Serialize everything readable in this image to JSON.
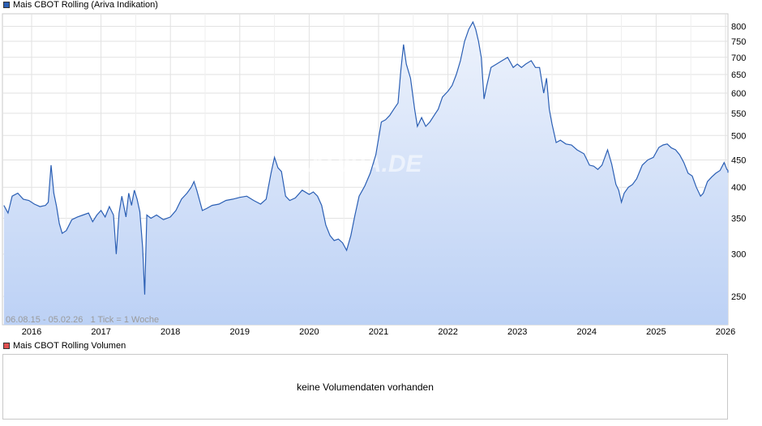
{
  "legend": {
    "price_label": "Mais CBOT Rolling (Ariva Indikation)",
    "price_color": "#2b5fb4",
    "volume_label": "Mais CBOT Rolling Volumen",
    "volume_color": "#e05050"
  },
  "watermark": "ARIVA.DE",
  "info_text": "06.08.15 - 05.02.26   1 Tick = 1 Woche",
  "volume_panel": {
    "message": "keine Volumendaten vorhanden"
  },
  "chart_data": {
    "type": "area",
    "title": "Mais CBOT Rolling (Ariva Indikation)",
    "series_name": "Mais CBOT Rolling",
    "y_scale": "log",
    "ylim": [
      228,
      825
    ],
    "xlim": [
      2015.6,
      2026.13
    ],
    "grid": true,
    "line_color": "#2b5fb4",
    "fill_top_color": "#eef3fc",
    "fill_bottom_color": "#bcd1f5",
    "y_ticks": [
      250,
      300,
      350,
      400,
      450,
      500,
      550,
      600,
      650,
      700,
      750,
      800
    ],
    "x_ticks": [
      {
        "label": "2016",
        "x": 2016.0
      },
      {
        "label": "2017",
        "x": 2017.0
      },
      {
        "label": "2018",
        "x": 2018.0
      },
      {
        "label": "2019",
        "x": 2019.0
      },
      {
        "label": "2020",
        "x": 2020.0
      },
      {
        "label": "2021",
        "x": 2021.0
      },
      {
        "label": "2022",
        "x": 2022.0
      },
      {
        "label": "2023",
        "x": 2023.0
      },
      {
        "label": "2024",
        "x": 2024.0
      },
      {
        "label": "2025",
        "x": 2025.0
      },
      {
        "label": "2026",
        "x": 2026.0
      }
    ],
    "points": [
      [
        2015.6,
        370
      ],
      [
        2015.66,
        358
      ],
      [
        2015.72,
        385
      ],
      [
        2015.8,
        390
      ],
      [
        2015.88,
        380
      ],
      [
        2015.96,
        378
      ],
      [
        2016.04,
        372
      ],
      [
        2016.12,
        368
      ],
      [
        2016.2,
        370
      ],
      [
        2016.24,
        375
      ],
      [
        2016.28,
        440
      ],
      [
        2016.32,
        390
      ],
      [
        2016.36,
        368
      ],
      [
        2016.4,
        342
      ],
      [
        2016.44,
        328
      ],
      [
        2016.5,
        332
      ],
      [
        2016.58,
        348
      ],
      [
        2016.66,
        352
      ],
      [
        2016.74,
        355
      ],
      [
        2016.82,
        358
      ],
      [
        2016.88,
        345
      ],
      [
        2016.94,
        355
      ],
      [
        2017.0,
        362
      ],
      [
        2017.06,
        352
      ],
      [
        2017.12,
        368
      ],
      [
        2017.18,
        355
      ],
      [
        2017.22,
        300
      ],
      [
        2017.26,
        358
      ],
      [
        2017.3,
        385
      ],
      [
        2017.36,
        352
      ],
      [
        2017.4,
        390
      ],
      [
        2017.44,
        370
      ],
      [
        2017.48,
        395
      ],
      [
        2017.52,
        380
      ],
      [
        2017.56,
        360
      ],
      [
        2017.6,
        308
      ],
      [
        2017.63,
        252
      ],
      [
        2017.66,
        355
      ],
      [
        2017.72,
        350
      ],
      [
        2017.8,
        355
      ],
      [
        2017.9,
        348
      ],
      [
        2018.0,
        352
      ],
      [
        2018.08,
        362
      ],
      [
        2018.16,
        380
      ],
      [
        2018.24,
        390
      ],
      [
        2018.3,
        400
      ],
      [
        2018.34,
        410
      ],
      [
        2018.38,
        395
      ],
      [
        2018.42,
        378
      ],
      [
        2018.46,
        362
      ],
      [
        2018.52,
        365
      ],
      [
        2018.6,
        370
      ],
      [
        2018.7,
        372
      ],
      [
        2018.8,
        378
      ],
      [
        2018.9,
        380
      ],
      [
        2019.0,
        383
      ],
      [
        2019.1,
        385
      ],
      [
        2019.2,
        378
      ],
      [
        2019.3,
        372
      ],
      [
        2019.38,
        380
      ],
      [
        2019.45,
        425
      ],
      [
        2019.5,
        455
      ],
      [
        2019.55,
        435
      ],
      [
        2019.6,
        428
      ],
      [
        2019.66,
        385
      ],
      [
        2019.72,
        378
      ],
      [
        2019.8,
        382
      ],
      [
        2019.9,
        395
      ],
      [
        2020.0,
        388
      ],
      [
        2020.06,
        392
      ],
      [
        2020.12,
        385
      ],
      [
        2020.18,
        370
      ],
      [
        2020.24,
        340
      ],
      [
        2020.3,
        325
      ],
      [
        2020.36,
        318
      ],
      [
        2020.42,
        320
      ],
      [
        2020.48,
        315
      ],
      [
        2020.54,
        305
      ],
      [
        2020.6,
        325
      ],
      [
        2020.66,
        355
      ],
      [
        2020.72,
        385
      ],
      [
        2020.8,
        402
      ],
      [
        2020.88,
        425
      ],
      [
        2020.96,
        460
      ],
      [
        2021.04,
        530
      ],
      [
        2021.1,
        535
      ],
      [
        2021.16,
        545
      ],
      [
        2021.22,
        560
      ],
      [
        2021.28,
        575
      ],
      [
        2021.32,
        660
      ],
      [
        2021.36,
        740
      ],
      [
        2021.4,
        680
      ],
      [
        2021.46,
        640
      ],
      [
        2021.52,
        560
      ],
      [
        2021.56,
        520
      ],
      [
        2021.62,
        540
      ],
      [
        2021.68,
        520
      ],
      [
        2021.74,
        530
      ],
      [
        2021.8,
        545
      ],
      [
        2021.86,
        560
      ],
      [
        2021.92,
        590
      ],
      [
        2022.0,
        605
      ],
      [
        2022.06,
        620
      ],
      [
        2022.12,
        650
      ],
      [
        2022.18,
        690
      ],
      [
        2022.24,
        750
      ],
      [
        2022.3,
        790
      ],
      [
        2022.36,
        815
      ],
      [
        2022.4,
        790
      ],
      [
        2022.44,
        750
      ],
      [
        2022.48,
        700
      ],
      [
        2022.52,
        585
      ],
      [
        2022.56,
        620
      ],
      [
        2022.62,
        670
      ],
      [
        2022.7,
        680
      ],
      [
        2022.78,
        690
      ],
      [
        2022.86,
        700
      ],
      [
        2022.94,
        670
      ],
      [
        2023.0,
        680
      ],
      [
        2023.06,
        670
      ],
      [
        2023.12,
        680
      ],
      [
        2023.2,
        690
      ],
      [
        2023.26,
        670
      ],
      [
        2023.32,
        670
      ],
      [
        2023.38,
        600
      ],
      [
        2023.42,
        640
      ],
      [
        2023.46,
        560
      ],
      [
        2023.5,
        525
      ],
      [
        2023.56,
        485
      ],
      [
        2023.62,
        490
      ],
      [
        2023.7,
        482
      ],
      [
        2023.78,
        480
      ],
      [
        2023.86,
        470
      ],
      [
        2023.96,
        462
      ],
      [
        2024.04,
        440
      ],
      [
        2024.1,
        438
      ],
      [
        2024.16,
        432
      ],
      [
        2024.22,
        440
      ],
      [
        2024.3,
        470
      ],
      [
        2024.36,
        442
      ],
      [
        2024.42,
        405
      ],
      [
        2024.46,
        395
      ],
      [
        2024.5,
        375
      ],
      [
        2024.54,
        390
      ],
      [
        2024.6,
        400
      ],
      [
        2024.66,
        405
      ],
      [
        2024.72,
        415
      ],
      [
        2024.8,
        440
      ],
      [
        2024.88,
        450
      ],
      [
        2024.96,
        455
      ],
      [
        2025.04,
        475
      ],
      [
        2025.1,
        480
      ],
      [
        2025.16,
        482
      ],
      [
        2025.22,
        474
      ],
      [
        2025.28,
        470
      ],
      [
        2025.34,
        460
      ],
      [
        2025.4,
        445
      ],
      [
        2025.46,
        425
      ],
      [
        2025.52,
        420
      ],
      [
        2025.58,
        400
      ],
      [
        2025.64,
        385
      ],
      [
        2025.68,
        390
      ],
      [
        2025.74,
        410
      ],
      [
        2025.8,
        418
      ],
      [
        2025.86,
        425
      ],
      [
        2025.92,
        430
      ],
      [
        2025.98,
        445
      ],
      [
        2026.02,
        432
      ],
      [
        2026.06,
        430
      ],
      [
        2026.1,
        426
      ]
    ]
  }
}
